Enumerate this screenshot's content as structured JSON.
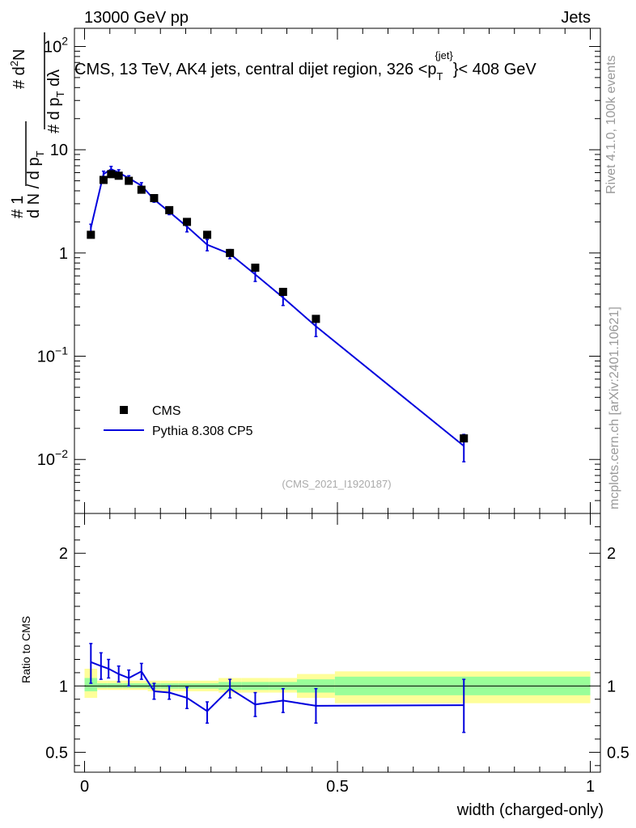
{
  "header": {
    "left": "13000 GeV pp",
    "right": "Jets"
  },
  "chart_data": [
    {
      "type": "line",
      "title_parts": {
        "main": "CMS, 13 TeV, AK4 jets, central dijet region, 326 <p",
        "sub": "T",
        "sup": "{jet}",
        "tail": "}< 408 GeV"
      },
      "title": "CMS, 13 TeV, AK4 jets, central dijet region, 326 <p_T^{jet}}< 408 GeV",
      "ylabel": "1/N dN/dp_T d^2N/dp_T dλ",
      "yscale": "log",
      "ylim": [
        0.003,
        150
      ],
      "xlim": [
        -0.02,
        1.02
      ],
      "y_ticks": [
        {
          "value": 0.01,
          "label": "10",
          "exp": "−2"
        },
        {
          "value": 0.1,
          "label": "10",
          "exp": "−1"
        },
        {
          "value": 1,
          "label": "1",
          "exp": ""
        },
        {
          "value": 10,
          "label": "10",
          "exp": ""
        },
        {
          "value": 100,
          "label": "10",
          "exp": "2"
        }
      ],
      "series": [
        {
          "name": "CMS",
          "kind": "markers",
          "color": "#000000",
          "x": [
            0.0125,
            0.0375,
            0.0525,
            0.0675,
            0.0875,
            0.1125,
            0.1375,
            0.1675,
            0.2025,
            0.2425,
            0.2875,
            0.3375,
            0.3925,
            0.4575,
            0.75
          ],
          "y": [
            1.5,
            5.1,
            5.8,
            5.6,
            5.0,
            4.1,
            3.4,
            2.6,
            2.0,
            1.5,
            1.0,
            0.72,
            0.42,
            0.23,
            0.016
          ]
        },
        {
          "name": "Pythia 8.308 CP5",
          "kind": "line",
          "color": "#0000dd",
          "x": [
            0.0125,
            0.0375,
            0.0525,
            0.0675,
            0.0875,
            0.1125,
            0.1375,
            0.1675,
            0.2025,
            0.2425,
            0.2875,
            0.3375,
            0.3925,
            0.4575,
            0.75
          ],
          "y": [
            1.75,
            5.8,
            6.5,
            6.0,
            5.3,
            4.5,
            3.3,
            2.5,
            1.8,
            1.2,
            0.98,
            0.62,
            0.37,
            0.195,
            0.0135
          ],
          "err_lo": [
            1.6,
            5.3,
            6.1,
            5.6,
            5.0,
            4.2,
            3.1,
            2.35,
            1.6,
            1.05,
            0.88,
            0.53,
            0.31,
            0.155,
            0.0095
          ],
          "err_hi": [
            1.9,
            6.2,
            6.9,
            6.4,
            5.6,
            4.8,
            3.6,
            2.7,
            2.0,
            1.35,
            1.08,
            0.71,
            0.43,
            0.24,
            0.0175
          ]
        }
      ],
      "watermark": "(CMS_2021_I1920187)"
    },
    {
      "type": "line",
      "ylabel": "Ratio to CMS",
      "ylim": [
        0.35,
        2.3
      ],
      "xlim": [
        -0.02,
        1.02
      ],
      "xlabel": "width (charged-only)",
      "x_ticks": [
        {
          "value": 0,
          "label": "0"
        },
        {
          "value": 0.5,
          "label": "0.5"
        },
        {
          "value": 1,
          "label": "1"
        }
      ],
      "y_ticks": [
        {
          "value": 0.5,
          "label": "0.5"
        },
        {
          "value": 1,
          "label": "1"
        },
        {
          "value": 2,
          "label": "2"
        }
      ],
      "bins": [
        0,
        0.025,
        0.045,
        0.06,
        0.075,
        0.1,
        0.125,
        0.15,
        0.185,
        0.22,
        0.265,
        0.31,
        0.365,
        0.42,
        0.495,
        1.0
      ],
      "band_outer": [
        [
          0.91,
          1.13
        ],
        [
          0.97,
          1.04
        ],
        [
          0.97,
          1.04
        ],
        [
          0.97,
          1.04
        ],
        [
          0.97,
          1.04
        ],
        [
          0.97,
          1.04
        ],
        [
          0.96,
          1.04
        ],
        [
          0.96,
          1.04
        ],
        [
          0.96,
          1.04
        ],
        [
          0.96,
          1.04
        ],
        [
          0.95,
          1.06
        ],
        [
          0.95,
          1.06
        ],
        [
          0.95,
          1.06
        ],
        [
          0.91,
          1.09
        ],
        [
          0.87,
          1.11
        ]
      ],
      "band_inner": [
        [
          0.96,
          1.06
        ],
        [
          0.985,
          1.02
        ],
        [
          0.985,
          1.02
        ],
        [
          0.985,
          1.02
        ],
        [
          0.985,
          1.02
        ],
        [
          0.985,
          1.02
        ],
        [
          0.98,
          1.02
        ],
        [
          0.98,
          1.02
        ],
        [
          0.98,
          1.02
        ],
        [
          0.98,
          1.02
        ],
        [
          0.97,
          1.03
        ],
        [
          0.97,
          1.03
        ],
        [
          0.97,
          1.03
        ],
        [
          0.95,
          1.05
        ],
        [
          0.93,
          1.07
        ]
      ],
      "band_colors": {
        "outer": "#fefe99",
        "inner": "#99fe99"
      },
      "series": [
        {
          "name": "Pythia 8.308 CP5",
          "color": "#0000dd",
          "x": [
            0.0125,
            0.0325,
            0.0475,
            0.0675,
            0.0875,
            0.1125,
            0.1375,
            0.1675,
            0.2025,
            0.2425,
            0.2875,
            0.3375,
            0.3925,
            0.4575,
            0.75
          ],
          "y": [
            1.18,
            1.15,
            1.13,
            1.09,
            1.06,
            1.11,
            0.96,
            0.95,
            0.91,
            0.81,
            0.98,
            0.86,
            0.89,
            0.85,
            0.855
          ],
          "err_lo": [
            1.02,
            1.05,
            1.06,
            1.03,
            1.0,
            1.05,
            0.9,
            0.9,
            0.83,
            0.72,
            0.91,
            0.77,
            0.8,
            0.72,
            0.65
          ],
          "err_hi": [
            1.32,
            1.25,
            1.2,
            1.15,
            1.12,
            1.17,
            1.02,
            1.0,
            0.99,
            0.88,
            1.05,
            0.95,
            0.98,
            0.98,
            1.05
          ]
        }
      ]
    }
  ],
  "side_labels": {
    "rivet": "Rivet 4.1.0,  100k events",
    "mcplots": "mcplots.cern.ch [arXiv:2401.10621]"
  }
}
